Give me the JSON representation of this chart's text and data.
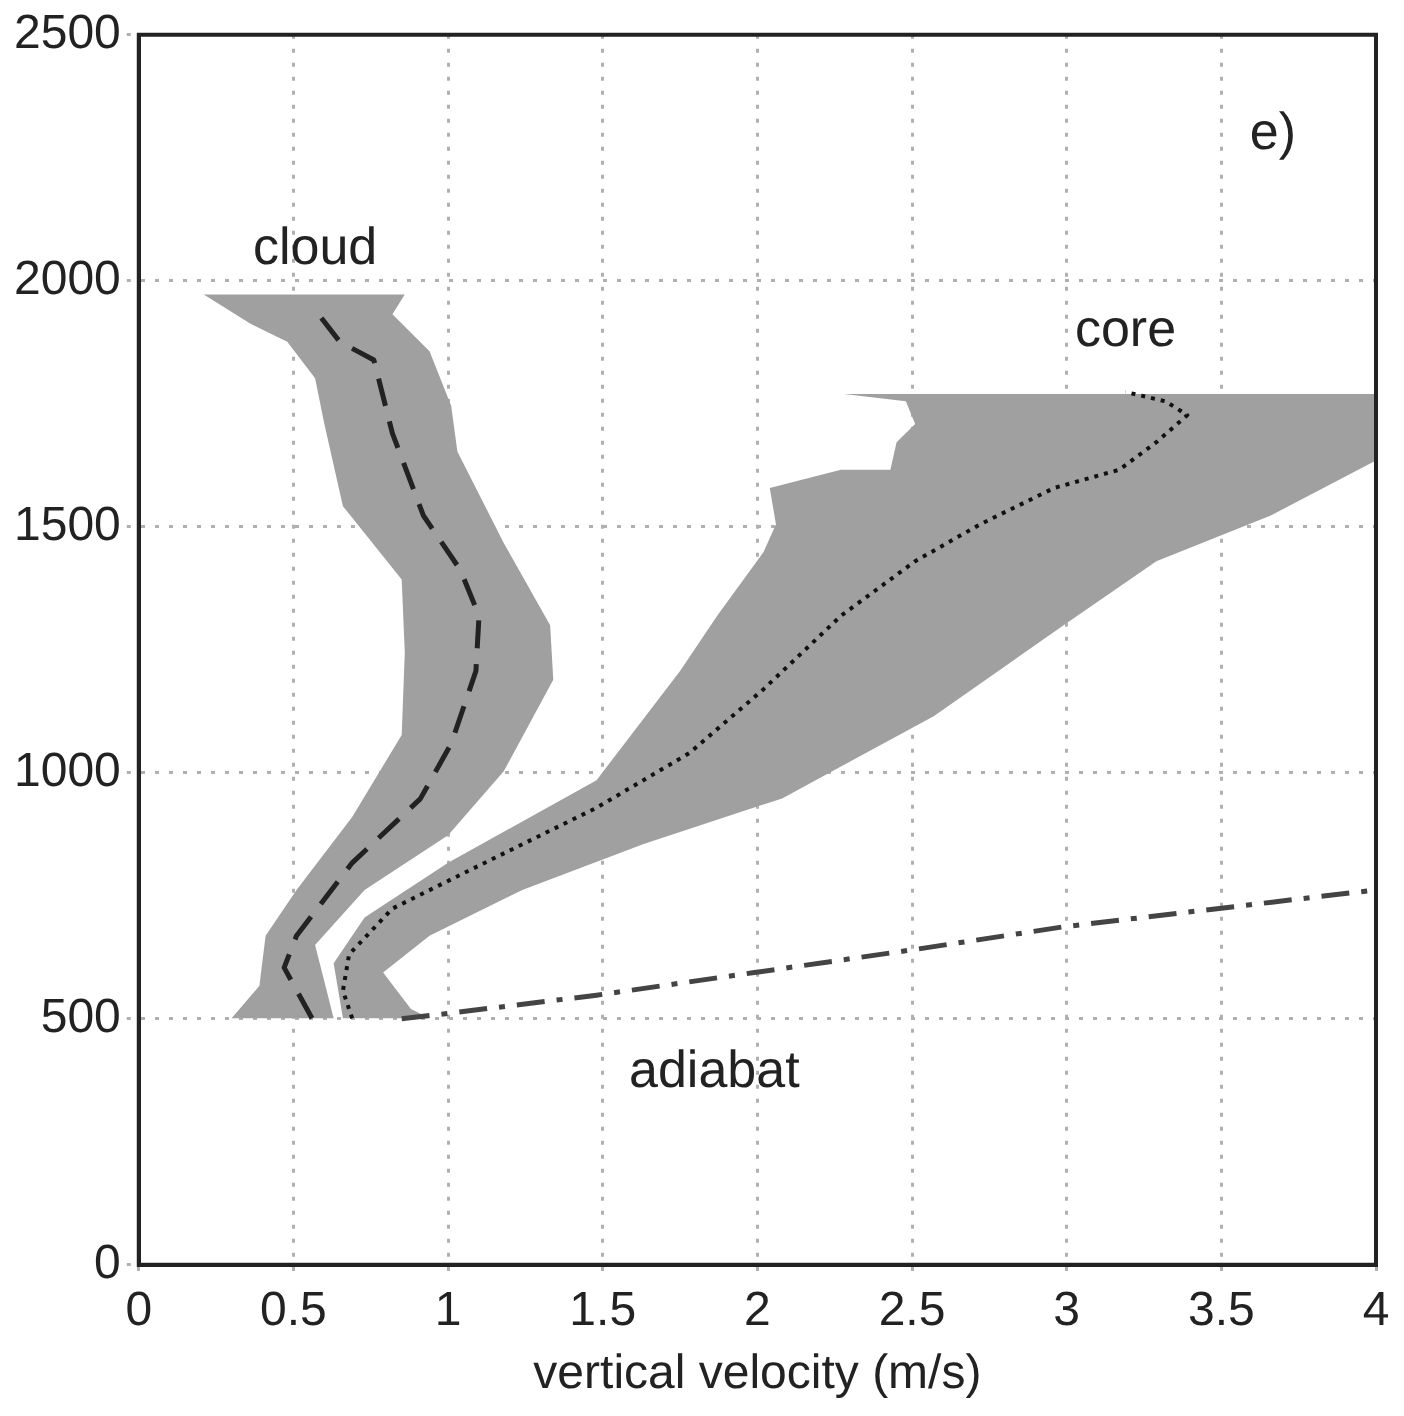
{
  "chart_data": {
    "type": "line",
    "xlabel": "vertical velocity (m/s)",
    "xlim": [
      0,
      4
    ],
    "xticks": [
      0,
      0.5,
      1,
      1.5,
      2,
      2.5,
      3,
      3.5,
      4
    ],
    "ylim": [
      0,
      2500
    ],
    "yticks": [
      0,
      500,
      1000,
      1500,
      2000,
      2500
    ],
    "grid": true,
    "series": [
      {
        "type": "area",
        "color": "#a0a0a0",
        "x": [
          0.3,
          0.39,
          0.41,
          0.51,
          0.69,
          0.85,
          0.86,
          0.85,
          0.66,
          0.6,
          0.57,
          0.48,
          0.36,
          0.21,
          0.86,
          0.82,
          0.94,
          1.01,
          1.03,
          1.18,
          1.33,
          1.34,
          1.18,
          1.0,
          0.73,
          0.57,
          0.6,
          0.63
        ],
        "values": [
          501,
          567,
          669,
          762,
          910,
          1077,
          1244,
          1393,
          1542,
          1709,
          1802,
          1876,
          1913,
          1972,
          1972,
          1932,
          1857,
          1746,
          1653,
          1467,
          1300,
          1189,
          1003,
          873,
          762,
          650,
          576,
          501
        ]
      },
      {
        "type": "area",
        "color": "#a0a0a0",
        "x": [
          0.66,
          0.63,
          0.73,
          1.0,
          1.48,
          1.75,
          1.87,
          2.02,
          2.06,
          2.04,
          2.27,
          2.43,
          2.45,
          2.51,
          2.48,
          2.28,
          4.0,
          4.0,
          3.66,
          3.29,
          2.99,
          2.57,
          2.08,
          1.63,
          1.24,
          0.94,
          0.79,
          0.88,
          0.94
        ],
        "values": [
          501,
          613,
          706,
          817,
          985,
          1207,
          1319,
          1449,
          1505,
          1579,
          1616,
          1616,
          1672,
          1709,
          1755,
          1770,
          1770,
          1635,
          1523,
          1430,
          1300,
          1115,
          948,
          855,
          762,
          669,
          594,
          520,
          501
        ]
      },
      {
        "name": "cloud",
        "color": "#222222",
        "line_style": "dashed",
        "x": [
          0.56,
          0.47,
          0.51,
          0.69,
          0.91,
          1.01,
          1.09,
          1.1,
          1.04,
          0.92,
          0.82,
          0.76,
          0.65,
          0.57
        ],
        "values": [
          501,
          604,
          669,
          817,
          947,
          1059,
          1207,
          1319,
          1412,
          1523,
          1690,
          1839,
          1876,
          1941
        ]
      },
      {
        "name": "core",
        "color": "#111111",
        "line_style": "dotted",
        "x": [
          0.69,
          0.66,
          0.68,
          0.82,
          1.06,
          1.48,
          1.78,
          2.02,
          2.27,
          2.51,
          2.72,
          2.96,
          3.17,
          3.29,
          3.39,
          3.32,
          3.19
        ],
        "values": [
          501,
          557,
          631,
          724,
          799,
          929,
          1040,
          1170,
          1319,
          1430,
          1505,
          1579,
          1616,
          1672,
          1727,
          1755,
          1774
        ]
      },
      {
        "name": "adiabat",
        "color": "#444444",
        "line_style": "dashdot",
        "x": [
          0.85,
          1.0,
          1.48,
          1.99,
          2.51,
          2.99,
          4.0
        ],
        "values": [
          500,
          511,
          548,
          594,
          641,
          687,
          762
        ]
      }
    ],
    "annotations": [
      "e)"
    ]
  }
}
